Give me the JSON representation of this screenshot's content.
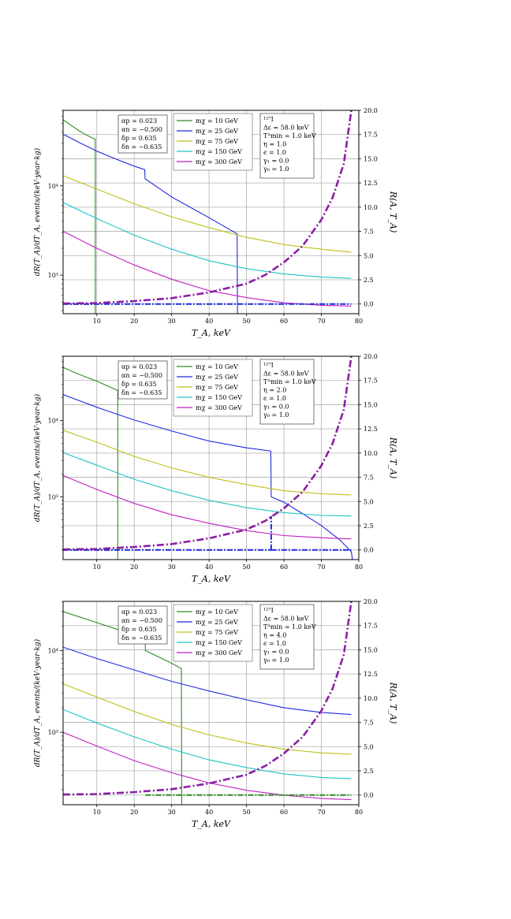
{
  "figure": {
    "x_label": "T_A, keV",
    "y_label": "dR(T_A)/dT_A, events/(keV·year·kg)",
    "y2_label": "R(A, T_A)",
    "x_ticks": [
      10,
      20,
      30,
      40,
      50,
      60,
      70,
      80
    ],
    "y2_ticks": [
      "0.0",
      "2.5",
      "5.0",
      "7.5",
      "10.0",
      "12.5",
      "15.0",
      "17.5",
      "20.0"
    ],
    "y_tick_labels": [
      "10³",
      "10⁴"
    ],
    "params_box": [
      "αp = 0.023",
      "αn = −0.500",
      "δp = 0.635",
      "δn = −0.635"
    ],
    "legend": [
      {
        "label": "mχ = 10 GeV",
        "color": "#2e8b22"
      },
      {
        "label": "mχ = 25 GeV",
        "color": "#1f2be0"
      },
      {
        "label": "mχ = 75 GeV",
        "color": "#c0bf1a"
      },
      {
        "label": "mχ = 150 GeV",
        "color": "#1fc3c3"
      },
      {
        "label": "mχ = 300 GeV",
        "color": "#c11fc1"
      }
    ],
    "ratio_color": "#8b1fa3"
  },
  "chart_data": [
    {
      "type": "line",
      "info_box": [
        "¹²⁷I",
        "Δε = 58.0 keV",
        "Tᴬmin = 1.0 keV",
        "η = 1.0",
        "ϵ = 1.0",
        "γ₁ = 0.0",
        "γ₀ = 1.0"
      ],
      "xlim": [
        1,
        80
      ],
      "ylim": [
        370,
        70000
      ],
      "y2lim": [
        -1,
        20
      ],
      "yscale": "log",
      "series": [
        {
          "name": "mχ = 10 GeV",
          "x": [
            1,
            3,
            5,
            7,
            9,
            9.5,
            9.6,
            9.6
          ],
          "y": [
            55000,
            48000,
            42000,
            37500,
            34000,
            33500,
            33500,
            370
          ]
        },
        {
          "name": "mχ = 25 GeV",
          "x": [
            1,
            5,
            10,
            15,
            20,
            22.8,
            22.9,
            30,
            40,
            47.5,
            47.6
          ],
          "y": [
            38000,
            31000,
            24500,
            20000,
            16600,
            15200,
            12000,
            7500,
            4400,
            2900,
            370
          ]
        },
        {
          "name": "mχ = 75 GeV",
          "x": [
            1,
            10,
            20,
            30,
            40,
            50,
            60,
            70,
            78
          ],
          "y": [
            13000,
            9200,
            6300,
            4500,
            3400,
            2650,
            2200,
            1950,
            1800
          ]
        },
        {
          "name": "mχ = 150 GeV",
          "x": [
            1,
            10,
            20,
            30,
            40,
            50,
            60,
            70,
            78
          ],
          "y": [
            6500,
            4300,
            2800,
            1950,
            1450,
            1180,
            1030,
            950,
            920
          ]
        },
        {
          "name": "mχ = 300 GeV",
          "x": [
            1,
            10,
            20,
            30,
            40,
            50,
            60,
            70,
            78
          ],
          "y": [
            3100,
            2000,
            1300,
            900,
            670,
            560,
            490,
            460,
            450
          ]
        }
      ],
      "ratio_series": [
        {
          "x": [
            1,
            10,
            20,
            30,
            40,
            50,
            55,
            60,
            65,
            70,
            73,
            76,
            78
          ],
          "y": [
            0.05,
            0.1,
            0.3,
            0.6,
            1.2,
            2.1,
            3.0,
            4.3,
            6.0,
            8.7,
            11.0,
            14.5,
            20.0
          ]
        }
      ],
      "flat_series": [
        {
          "color": "#2e8b22",
          "x": [
            1,
            9.6
          ],
          "y": [
            0,
            0
          ]
        },
        {
          "color": "#1f2be0",
          "x": [
            1,
            47.6
          ],
          "y": [
            0,
            0
          ]
        },
        {
          "color": "#1f2be0",
          "x": [
            47.6,
            78
          ],
          "y": [
            0,
            0
          ]
        }
      ]
    },
    {
      "type": "line",
      "info_box": [
        "¹²⁷I",
        "Δε = 58.0 keV",
        "Tᴬmin = 1.0 keV",
        "η = 2.0",
        "ϵ = 1.0",
        "γ₁ = 0.0",
        "γ₀ = 1.0"
      ],
      "xlim": [
        1,
        80
      ],
      "ylim": [
        150,
        70000
      ],
      "y2lim": [
        -1,
        20
      ],
      "yscale": "log",
      "series": [
        {
          "name": "mχ = 10 GeV",
          "x": [
            1,
            5,
            10,
            15.5,
            15.6,
            15.6
          ],
          "y": [
            50000,
            41000,
            33000,
            25000,
            25000,
            150
          ]
        },
        {
          "name": "mχ = 25 GeV",
          "x": [
            1,
            10,
            20,
            30,
            40,
            50,
            56.5,
            56.6,
            60,
            65,
            70,
            75,
            78,
            78.3
          ],
          "y": [
            22000,
            15000,
            10200,
            7300,
            5400,
            4400,
            4000,
            1000,
            850,
            600,
            420,
            270,
            190,
            150
          ]
        },
        {
          "name": "mχ = 75 GeV",
          "x": [
            1,
            10,
            20,
            30,
            40,
            50,
            60,
            70,
            78
          ],
          "y": [
            7500,
            5200,
            3400,
            2400,
            1800,
            1450,
            1200,
            1100,
            1060
          ]
        },
        {
          "name": "mχ = 150 GeV",
          "x": [
            1,
            10,
            20,
            30,
            40,
            50,
            60,
            70,
            78
          ],
          "y": [
            3800,
            2600,
            1700,
            1200,
            900,
            720,
            620,
            570,
            560
          ]
        },
        {
          "name": "mχ = 300 GeV",
          "x": [
            1,
            10,
            20,
            30,
            40,
            50,
            60,
            70,
            78
          ],
          "y": [
            1900,
            1250,
            820,
            580,
            450,
            360,
            310,
            290,
            280
          ]
        }
      ],
      "ratio_series": [
        {
          "x": [
            1,
            10,
            20,
            30,
            40,
            50,
            55,
            60,
            65,
            70,
            73,
            76,
            78
          ],
          "y": [
            0.05,
            0.1,
            0.3,
            0.6,
            1.2,
            2.1,
            3.0,
            4.3,
            6.0,
            8.7,
            11.0,
            14.5,
            20.0
          ]
        }
      ],
      "flat_series": [
        {
          "color": "#2e8b22",
          "x": [
            1,
            15.6
          ],
          "y": [
            0,
            0
          ]
        },
        {
          "color": "#1f2be0",
          "x": [
            1,
            56.6
          ],
          "y": [
            0,
            0
          ]
        },
        {
          "color": "#1f2be0",
          "x": [
            56.6,
            56.6
          ],
          "y": [
            0,
            3.5
          ]
        },
        {
          "color": "#1f2be0",
          "x": [
            56.6,
            78
          ],
          "y": [
            0,
            0
          ]
        }
      ]
    },
    {
      "type": "line",
      "info_box": [
        "¹²⁷I",
        "Δε = 58.0 keV",
        "Tᴬmin = 1.0 keV",
        "η = 4.0",
        "ϵ = 1.0",
        "γ₁ = 0.0",
        "γ₀ = 1.0"
      ],
      "xlim": [
        1,
        80
      ],
      "ylim": [
        130,
        40000
      ],
      "y2lim": [
        -1,
        20
      ],
      "yscale": "log",
      "series": [
        {
          "name": "mχ = 10 GeV",
          "x": [
            1,
            10,
            20,
            22.9,
            23.0,
            30,
            32.6,
            32.7
          ],
          "y": [
            30000,
            22000,
            15500,
            14000,
            10000,
            7000,
            6000,
            130
          ]
        },
        {
          "name": "mχ = 25 GeV",
          "x": [
            1,
            10,
            20,
            30,
            40,
            50,
            60,
            70,
            78
          ],
          "y": [
            11000,
            8000,
            5800,
            4200,
            3200,
            2500,
            2000,
            1750,
            1650
          ]
        },
        {
          "name": "mχ = 75 GeV",
          "x": [
            1,
            10,
            20,
            30,
            40,
            50,
            60,
            70,
            78
          ],
          "y": [
            3900,
            2700,
            1800,
            1250,
            930,
            740,
            620,
            560,
            540
          ]
        },
        {
          "name": "mχ = 150 GeV",
          "x": [
            1,
            10,
            20,
            30,
            40,
            50,
            60,
            70,
            78
          ],
          "y": [
            1900,
            1300,
            880,
            620,
            460,
            370,
            310,
            280,
            270
          ]
        },
        {
          "name": "mχ = 300 GeV",
          "x": [
            1,
            10,
            20,
            30,
            40,
            50,
            60,
            70,
            78
          ],
          "y": [
            1000,
            680,
            450,
            320,
            240,
            195,
            170,
            155,
            150
          ]
        }
      ],
      "ratio_series": [
        {
          "x": [
            1,
            10,
            20,
            30,
            40,
            50,
            55,
            60,
            65,
            70,
            73,
            76,
            78
          ],
          "y": [
            0.05,
            0.1,
            0.3,
            0.6,
            1.2,
            2.1,
            3.0,
            4.3,
            6.0,
            8.7,
            11.0,
            14.5,
            20.0
          ]
        }
      ],
      "flat_series": [
        {
          "color": "#2e8b22",
          "x": [
            23,
            78
          ],
          "y": [
            0,
            0
          ]
        }
      ]
    }
  ]
}
